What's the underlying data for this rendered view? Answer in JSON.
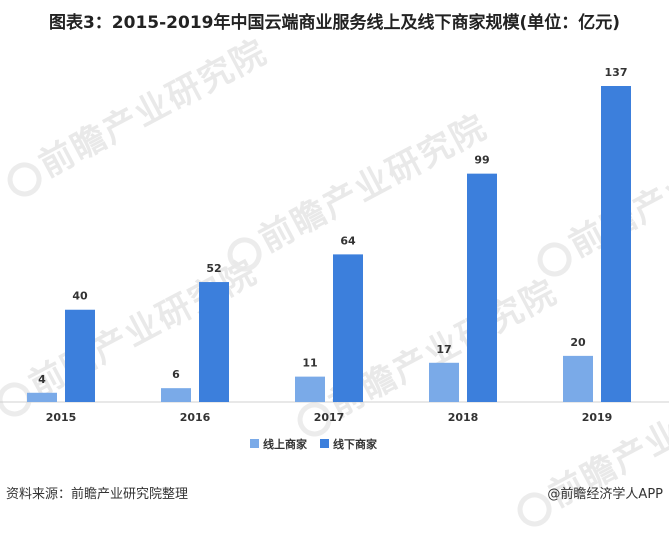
{
  "title": "图表3：2015-2019年中国云端商业服务线上及线下商家规模(单位：亿元)",
  "footer": {
    "source": "资料来源：前瞻产业研究院整理",
    "credit": "@前瞻经济学人APP"
  },
  "watermark_text": "前瞻产业研究院",
  "colors": {
    "online": "#7aaae8",
    "offline": "#3c7fdc"
  },
  "chart_data": {
    "type": "bar",
    "title": "图表3：2015-2019年中国云端商业服务线上及线下商家规模(单位：亿元)",
    "xlabel": "",
    "ylabel": "",
    "categories": [
      "2015",
      "2016",
      "2017",
      "2018",
      "2019"
    ],
    "series": [
      {
        "name": "线上商家",
        "values": [
          4,
          6,
          11,
          17,
          20
        ]
      },
      {
        "name": "线下商家",
        "values": [
          40,
          52,
          64,
          99,
          137
        ]
      }
    ],
    "ylim": [
      0,
      137
    ],
    "grid": false,
    "legend_position": "bottom-center",
    "data_labels": true
  }
}
